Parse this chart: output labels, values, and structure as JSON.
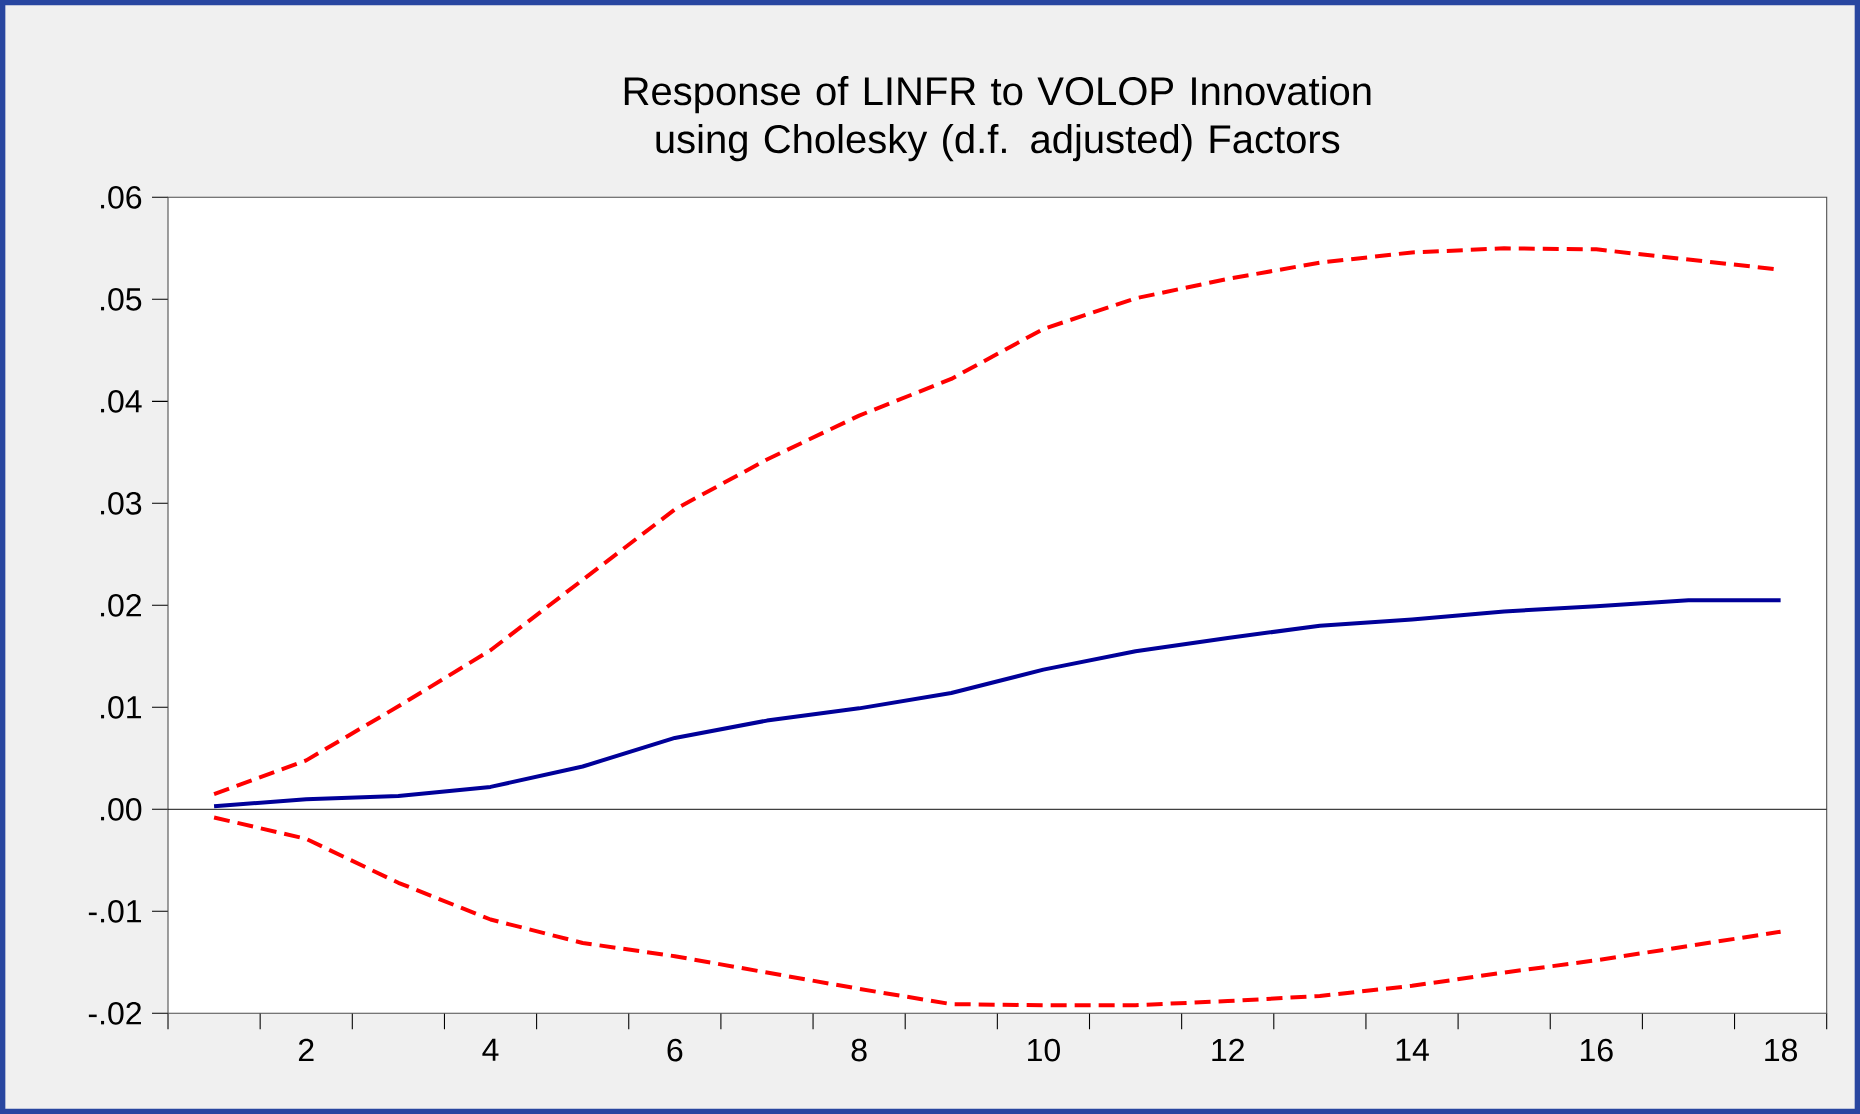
{
  "chart_data": {
    "type": "line",
    "title": "Response of LINFR to VOLOP Innovation using Cholesky (d.f. adjusted) Factors",
    "x": [
      1,
      2,
      3,
      4,
      5,
      6,
      7,
      8,
      9,
      10,
      11,
      12,
      13,
      14,
      15,
      16,
      17,
      18
    ],
    "series": [
      {
        "color": "#000099",
        "line_style": "solid",
        "values": [
          0.0003,
          0.001,
          0.0013,
          0.0022,
          0.0042,
          0.007,
          0.0087,
          0.0099,
          0.0114,
          0.0137,
          0.0155,
          0.0168,
          0.018,
          0.0186,
          0.0194,
          0.0199,
          0.0205,
          0.0205
        ]
      },
      {
        "color": "#ff0000",
        "line_style": "dashed",
        "values": [
          0.0015,
          0.0048,
          0.0101,
          0.0156,
          0.0225,
          0.0294,
          0.0343,
          0.0386,
          0.0422,
          0.0471,
          0.0501,
          0.052,
          0.0536,
          0.0546,
          0.055,
          0.0549,
          0.0539,
          0.0529
        ]
      },
      {
        "color": "#ff0000",
        "line_style": "dashed",
        "values": [
          -0.0008,
          -0.0029,
          -0.0072,
          -0.0108,
          -0.0131,
          -0.0144,
          -0.016,
          -0.0176,
          -0.0191,
          -0.0192,
          -0.0192,
          -0.0188,
          -0.0183,
          -0.0173,
          -0.016,
          -0.0148,
          -0.0134,
          -0.012
        ]
      }
    ],
    "xlim": [
      0.5,
      18.5
    ],
    "xticks": [
      {
        "value": 0.5,
        "label": null
      },
      {
        "value": 1.5,
        "label": null
      },
      2,
      {
        "value": 2.5,
        "label": null
      },
      {
        "value": 3.5,
        "label": null
      },
      4,
      {
        "value": 4.5,
        "label": null
      },
      {
        "value": 5.5,
        "label": null
      },
      6,
      {
        "value": 6.5,
        "label": null
      },
      {
        "value": 7.5,
        "label": null
      },
      8,
      {
        "value": 8.5,
        "label": null
      },
      {
        "value": 9.5,
        "label": null
      },
      10,
      {
        "value": 10.5,
        "label": null
      },
      {
        "value": 11.5,
        "label": null
      },
      12,
      {
        "value": 12.5,
        "label": null
      },
      {
        "value": 13.5,
        "label": null
      },
      14,
      {
        "value": 14.5,
        "label": null
      },
      {
        "value": 15.5,
        "label": null
      },
      16,
      {
        "value": 16.5,
        "label": null
      },
      {
        "value": 17.5,
        "label": null
      },
      18,
      {
        "value": 18.5,
        "label": null
      }
    ],
    "ylim": [
      -0.02,
      0.06
    ],
    "yticks": [
      {
        "value": -0.02,
        "label": "-.02"
      },
      {
        "value": -0.01,
        "label": "-.01"
      },
      {
        "value": 0,
        "label": ".00"
      },
      {
        "value": 0.01,
        "label": ".01"
      },
      {
        "value": 0.02,
        "label": ".02"
      },
      {
        "value": 0.03,
        "label": ".03"
      },
      {
        "value": 0.04,
        "label": ".04"
      },
      {
        "value": 0.05,
        "label": ".05"
      },
      {
        "value": 0.06,
        "label": ".06"
      }
    ],
    "ref_lines": [
      {
        "axis": "y",
        "value": 0,
        "color": "#000000"
      }
    ],
    "marker": "none"
  }
}
